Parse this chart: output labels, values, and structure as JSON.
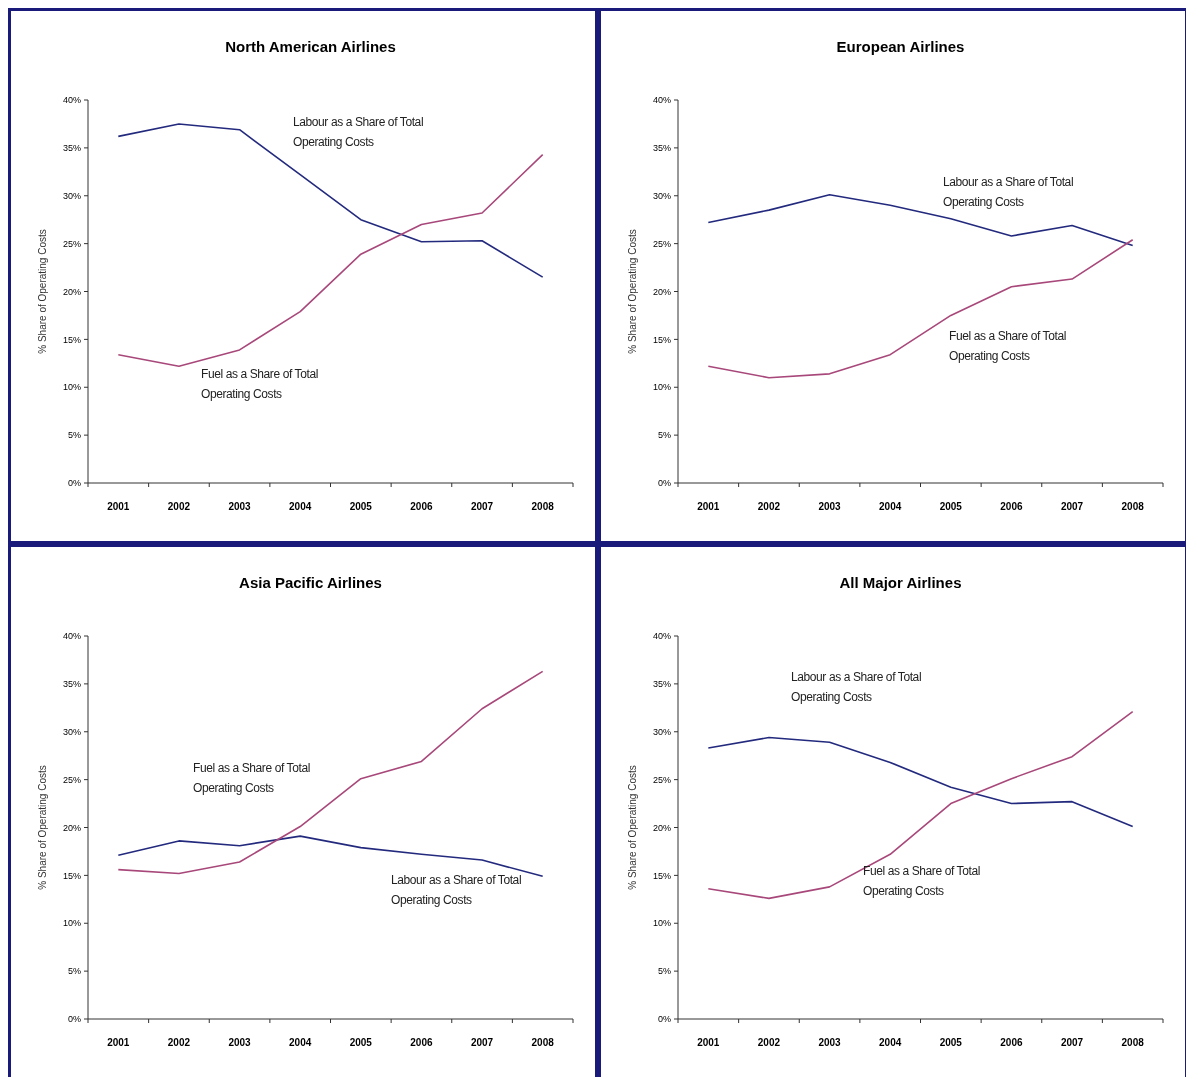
{
  "chart_data": [
    {
      "type": "line",
      "title": "North American Airlines",
      "ylabel": "% Share of Operating Costs",
      "categories": [
        "2001",
        "2002",
        "2003",
        "2004",
        "2005",
        "2006",
        "2007",
        "2008"
      ],
      "ylim": [
        0,
        40
      ],
      "yticks": [
        {
          "value": 0,
          "label": "0%"
        },
        {
          "value": 5,
          "label": "5%"
        },
        {
          "value": 10,
          "label": "10%"
        },
        {
          "value": 15,
          "label": "15%"
        },
        {
          "value": 20,
          "label": "20%"
        },
        {
          "value": 25,
          "label": "25%"
        },
        {
          "value": 30,
          "label": "30%"
        },
        {
          "value": 35,
          "label": "35%"
        },
        {
          "value": 40,
          "label": "40%"
        }
      ],
      "grid": false,
      "marker": "none",
      "line_style": "solid",
      "series": [
        {
          "name": "Labour as a Share of Total Operating Costs",
          "color": "#232a7e",
          "values": [
            36.2,
            37.5,
            36.9,
            32.2,
            27.5,
            25.2,
            25.3,
            21.5
          ]
        },
        {
          "name": "Fuel as a Share of Total Operating Costs",
          "color": "#a8487a",
          "values": [
            13.4,
            12.2,
            13.9,
            17.9,
            23.9,
            27.0,
            28.2,
            34.3
          ]
        }
      ]
    },
    {
      "type": "line",
      "title": "European Airlines",
      "ylabel": "% Share of Operating Costs",
      "categories": [
        "2001",
        "2002",
        "2003",
        "2004",
        "2005",
        "2006",
        "2007",
        "2008"
      ],
      "ylim": [
        0,
        40
      ],
      "yticks": [
        {
          "value": 0,
          "label": "0%"
        },
        {
          "value": 5,
          "label": "5%"
        },
        {
          "value": 10,
          "label": "10%"
        },
        {
          "value": 15,
          "label": "15%"
        },
        {
          "value": 20,
          "label": "20%"
        },
        {
          "value": 25,
          "label": "25%"
        },
        {
          "value": 30,
          "label": "30%"
        },
        {
          "value": 35,
          "label": "35%"
        },
        {
          "value": 40,
          "label": "40%"
        }
      ],
      "grid": false,
      "marker": "none",
      "line_style": "solid",
      "series": [
        {
          "name": "Labour as a Share of Total Operating Costs",
          "color": "#232a7e",
          "values": [
            27.2,
            28.5,
            30.1,
            29.0,
            27.6,
            25.8,
            26.9,
            24.8
          ]
        },
        {
          "name": "Fuel as a Share of Total Operating Costs",
          "color": "#a8487a",
          "values": [
            12.2,
            11.0,
            11.4,
            13.4,
            17.5,
            20.5,
            21.3,
            25.4
          ]
        }
      ]
    },
    {
      "type": "line",
      "title": "Asia Pacific Airlines",
      "ylabel": "% Share of Operating Costs",
      "categories": [
        "2001",
        "2002",
        "2003",
        "2004",
        "2005",
        "2006",
        "2007",
        "2008"
      ],
      "ylim": [
        0,
        40
      ],
      "yticks": [
        {
          "value": 0,
          "label": "0%"
        },
        {
          "value": 5,
          "label": "5%"
        },
        {
          "value": 10,
          "label": "10%"
        },
        {
          "value": 15,
          "label": "15%"
        },
        {
          "value": 20,
          "label": "20%"
        },
        {
          "value": 25,
          "label": "25%"
        },
        {
          "value": 30,
          "label": "30%"
        },
        {
          "value": 35,
          "label": "35%"
        },
        {
          "value": 40,
          "label": "40%"
        }
      ],
      "grid": false,
      "marker": "none",
      "line_style": "solid",
      "series": [
        {
          "name": "Labour as a Share of Total Operating Costs",
          "color": "#232a7e",
          "values": [
            17.1,
            18.6,
            18.1,
            19.1,
            17.9,
            17.2,
            16.6,
            14.9
          ]
        },
        {
          "name": "Fuel as a Share of Total Operating Costs",
          "color": "#a8487a",
          "values": [
            15.6,
            15.2,
            16.4,
            20.1,
            25.1,
            26.9,
            32.4,
            36.3
          ]
        }
      ]
    },
    {
      "type": "line",
      "title": "All Major Airlines",
      "ylabel": "% Share of Operating Costs",
      "categories": [
        "2001",
        "2002",
        "2003",
        "2004",
        "2005",
        "2006",
        "2007",
        "2008"
      ],
      "ylim": [
        0,
        40
      ],
      "yticks": [
        {
          "value": 0,
          "label": "0%"
        },
        {
          "value": 5,
          "label": "5%"
        },
        {
          "value": 10,
          "label": "10%"
        },
        {
          "value": 15,
          "label": "15%"
        },
        {
          "value": 20,
          "label": "20%"
        },
        {
          "value": 25,
          "label": "25%"
        },
        {
          "value": 30,
          "label": "30%"
        },
        {
          "value": 35,
          "label": "35%"
        },
        {
          "value": 40,
          "label": "40%"
        }
      ],
      "grid": false,
      "marker": "none",
      "line_style": "solid",
      "series": [
        {
          "name": "Labour as a Share of Total Operating Costs",
          "color": "#232a7e",
          "values": [
            28.3,
            29.4,
            28.9,
            26.8,
            24.2,
            22.5,
            22.7,
            20.1
          ]
        },
        {
          "name": "Fuel as a Share of Total Operating Costs",
          "color": "#a8487a",
          "values": [
            13.6,
            12.6,
            13.8,
            17.2,
            22.5,
            25.1,
            27.4,
            32.1
          ]
        }
      ]
    }
  ]
}
